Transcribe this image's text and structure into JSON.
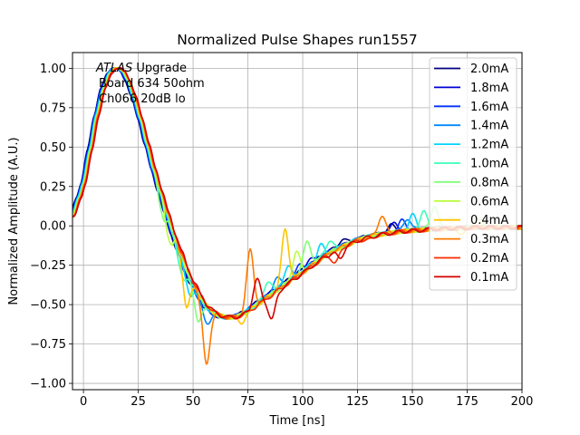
{
  "chart_data": {
    "type": "line",
    "title": "Normalized Pulse Shapes run1557",
    "xlabel": "Time [ns]",
    "ylabel": "Normalized Amplitude (A.U.)",
    "xlim": [
      -5,
      200
    ],
    "ylim": [
      -1.04,
      1.1
    ],
    "grid": true,
    "legend_position": "upper-right",
    "xticks": [
      0,
      25,
      50,
      75,
      100,
      125,
      150,
      175,
      200
    ],
    "xtick_labels": [
      "0",
      "25",
      "50",
      "75",
      "100",
      "125",
      "150",
      "175",
      "200"
    ],
    "yticks": [
      1.0,
      0.75,
      0.5,
      0.25,
      0.0,
      -0.25,
      -0.5,
      -0.75,
      -1.0
    ],
    "ytick_labels": [
      "1.00",
      "0.75",
      "0.50",
      "0.25",
      "0.00",
      "−0.25",
      "−0.50",
      "−0.75",
      "−1.00"
    ],
    "annotation": {
      "line1_italic": "ATLAS",
      "line1_rest": " Upgrade",
      "line2": "Board 634 50ohm",
      "line3": "Ch066 20dB lo"
    },
    "base_shape": {
      "x": [
        -5,
        -2,
        0,
        3,
        6,
        9,
        12,
        14,
        16,
        18,
        20,
        23,
        26,
        29,
        32,
        35,
        38,
        41,
        44,
        47,
        50,
        53,
        56,
        59,
        62,
        65,
        68,
        71,
        74,
        77,
        80,
        84,
        88,
        92,
        96,
        100,
        105,
        110,
        115,
        120,
        125,
        130,
        135,
        140,
        145,
        150,
        160,
        170,
        180,
        190,
        200
      ],
      "y": [
        0.06,
        0.18,
        0.27,
        0.48,
        0.7,
        0.87,
        0.97,
        1.0,
        1.0,
        0.98,
        0.93,
        0.82,
        0.68,
        0.52,
        0.36,
        0.22,
        0.08,
        -0.05,
        -0.17,
        -0.28,
        -0.37,
        -0.45,
        -0.51,
        -0.55,
        -0.57,
        -0.58,
        -0.58,
        -0.57,
        -0.55,
        -0.52,
        -0.49,
        -0.45,
        -0.41,
        -0.37,
        -0.33,
        -0.29,
        -0.24,
        -0.19,
        -0.15,
        -0.12,
        -0.09,
        -0.07,
        -0.055,
        -0.045,
        -0.035,
        -0.03,
        -0.02,
        -0.015,
        -0.01,
        -0.01,
        -0.01
      ]
    },
    "series": [
      {
        "name": "2.0mA",
        "color": "#00007f",
        "shift": -1.2,
        "spikes": [
          [
            118,
            0.04
          ],
          [
            140,
            0.05
          ]
        ]
      },
      {
        "name": "1.8mA",
        "color": "#0000d4",
        "shift": -1.0,
        "spikes": [
          [
            103,
            0.04
          ],
          [
            142,
            0.06
          ]
        ]
      },
      {
        "name": "1.6mA",
        "color": "#0034ff",
        "shift": -0.8,
        "spikes": [
          [
            99,
            0.05
          ],
          [
            145,
            0.07
          ]
        ]
      },
      {
        "name": "1.4mA",
        "color": "#0088ff",
        "shift": -0.6,
        "spikes": [
          [
            56,
            -0.1
          ],
          [
            88,
            0.07
          ],
          [
            148,
            0.08
          ]
        ]
      },
      {
        "name": "1.2mA",
        "color": "#00d4ff",
        "shift": -0.4,
        "spikes": [
          [
            48,
            -0.1
          ],
          [
            93,
            0.1
          ],
          [
            108,
            0.08
          ],
          [
            150,
            0.1
          ]
        ]
      },
      {
        "name": "1.0mA",
        "color": "#3dffba",
        "shift": -0.2,
        "spikes": [
          [
            45,
            -0.12
          ],
          [
            84,
            0.1
          ],
          [
            112,
            0.08
          ],
          [
            155,
            0.12
          ]
        ]
      },
      {
        "name": "0.8mA",
        "color": "#80ff76",
        "shift": 0.0,
        "spikes": [
          [
            36,
            -0.12
          ],
          [
            52,
            -0.18
          ],
          [
            102,
            0.18
          ],
          [
            160,
            0.15
          ]
        ]
      },
      {
        "name": "0.6mA",
        "color": "#baff3d",
        "shift": 0.2,
        "spikes": [
          [
            39,
            -0.14
          ],
          [
            97,
            0.16
          ],
          [
            180,
            0.06
          ]
        ]
      },
      {
        "name": "0.4mA",
        "color": "#ffc400",
        "shift": 0.4,
        "spikes": [
          [
            47,
            -0.25
          ],
          [
            72,
            -0.05
          ],
          [
            92,
            0.35
          ],
          [
            173,
            -0.04
          ]
        ]
      },
      {
        "name": "0.3mA",
        "color": "#ff7a00",
        "shift": 0.6,
        "spikes": [
          [
            56,
            -0.38
          ],
          [
            76,
            0.38
          ],
          [
            136,
            0.12
          ]
        ]
      },
      {
        "name": "0.2mA",
        "color": "#ff2a00",
        "shift": 0.8,
        "spikes": [
          [
            115,
            -0.08
          ],
          [
            130,
            -0.02
          ]
        ]
      },
      {
        "name": "0.1mA",
        "color": "#d40000",
        "shift": 1.0,
        "spikes": [
          [
            79,
            0.17
          ],
          [
            86,
            -0.15
          ],
          [
            117,
            -0.06
          ]
        ]
      }
    ]
  }
}
